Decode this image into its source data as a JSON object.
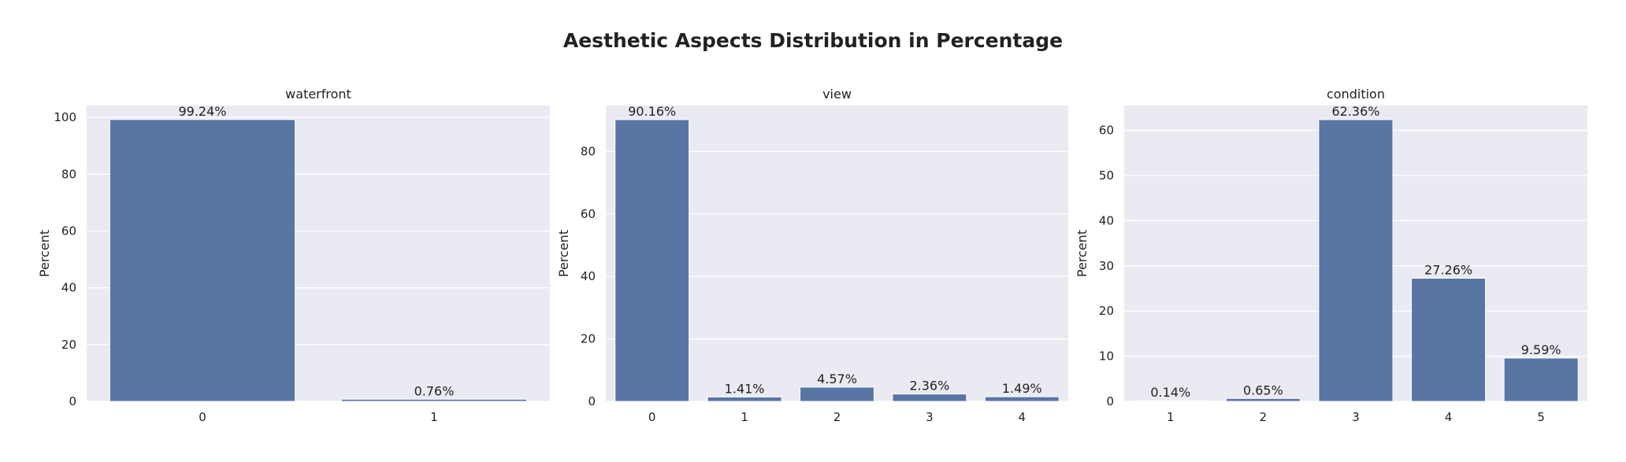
{
  "figure": {
    "title": "Aesthetic Aspects Distribution in Percentage",
    "background": "#ffffff",
    "axes_background": "#eaeaf2",
    "grid_color": "#ffffff",
    "bar_color": "#5975a4"
  },
  "chart_data": [
    {
      "type": "bar",
      "title": "waterfront",
      "xlabel": "",
      "ylabel": "Percent",
      "categories": [
        "0",
        "1"
      ],
      "values": [
        99.24,
        0.76
      ],
      "data_labels": [
        "99.24%",
        "0.76%"
      ],
      "ylim": [
        0,
        104.2
      ],
      "yticks": [
        0,
        20,
        40,
        60,
        80,
        100
      ],
      "grid": true
    },
    {
      "type": "bar",
      "title": "view",
      "xlabel": "",
      "ylabel": "Percent",
      "categories": [
        "0",
        "1",
        "2",
        "3",
        "4"
      ],
      "values": [
        90.16,
        1.41,
        4.57,
        2.36,
        1.49
      ],
      "data_labels": [
        "90.16%",
        "1.41%",
        "4.57%",
        "2.36%",
        "1.49%"
      ],
      "ylim": [
        0,
        94.7
      ],
      "yticks": [
        0,
        20,
        40,
        60,
        80
      ],
      "grid": true
    },
    {
      "type": "bar",
      "title": "condition",
      "xlabel": "",
      "ylabel": "Percent",
      "categories": [
        "1",
        "2",
        "3",
        "4",
        "5"
      ],
      "values": [
        0.14,
        0.65,
        62.36,
        27.26,
        9.59
      ],
      "data_labels": [
        "0.14%",
        "0.65%",
        "62.36%",
        "27.26%",
        "9.59%"
      ],
      "ylim": [
        0,
        65.5
      ],
      "yticks": [
        0,
        10,
        20,
        30,
        40,
        50,
        60
      ],
      "grid": true
    }
  ]
}
